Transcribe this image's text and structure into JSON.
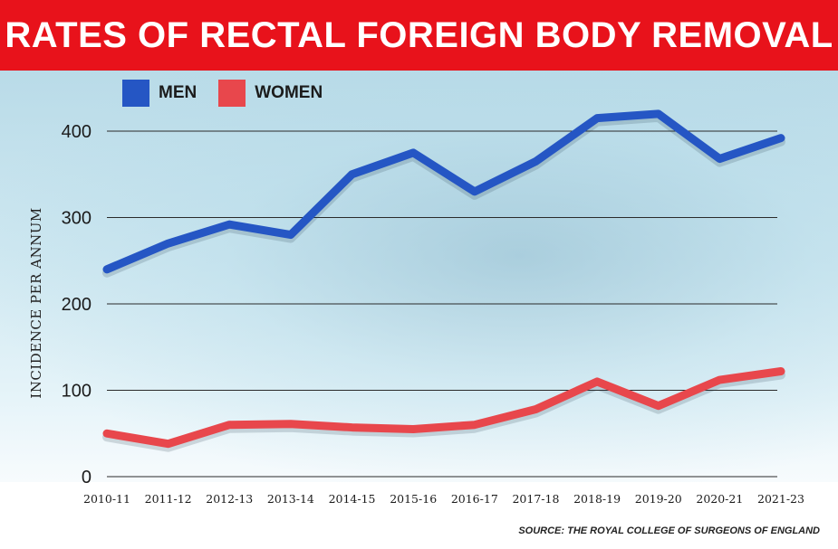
{
  "title": "RATES OF RECTAL FOREIGN BODY REMOVAL",
  "source": "SOURCE: THE ROYAL COLLEGE OF SURGEONS OF ENGLAND",
  "colors": {
    "title_bar": "#e8121b",
    "men": "#2556c4",
    "women": "#e8474c"
  },
  "chart_data": {
    "type": "line",
    "title": "RATES OF RECTAL FOREIGN BODY REMOVAL",
    "xlabel": "",
    "ylabel": "INCIDENCE PER ANNUM",
    "categories": [
      "2010-11",
      "2011-12",
      "2012-13",
      "2013-14",
      "2014-15",
      "2015-16",
      "2016-17",
      "2017-18",
      "2018-19",
      "2019-20",
      "2020-21",
      "2021-23"
    ],
    "ylim": [
      0,
      430
    ],
    "yticks": [
      0,
      100,
      200,
      300,
      400
    ],
    "grid": true,
    "legend_position": "top-left",
    "series": [
      {
        "name": "MEN",
        "color": "#2556c4",
        "values": [
          240,
          270,
          292,
          280,
          350,
          375,
          330,
          365,
          415,
          420,
          368,
          392
        ]
      },
      {
        "name": "WOMEN",
        "color": "#e8474c",
        "values": [
          50,
          38,
          60,
          61,
          57,
          55,
          60,
          78,
          110,
          82,
          112,
          122
        ]
      }
    ]
  }
}
